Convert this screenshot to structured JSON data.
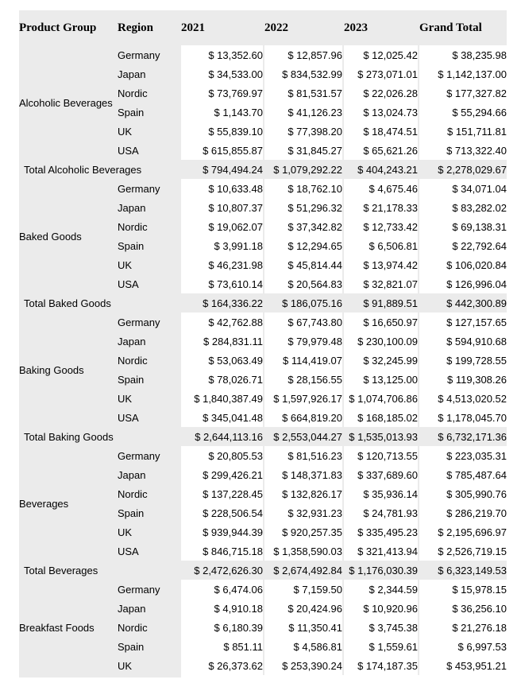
{
  "colors": {
    "band_gray": "#ebebeb",
    "cell_white": "#ffffff",
    "text": "#000000"
  },
  "table": {
    "columns": [
      "Product Group",
      "Region",
      "2021",
      "2022",
      "2023",
      "Grand Total"
    ],
    "groups": [
      {
        "product_group": "Alcoholic Beverages",
        "rows": [
          {
            "region": "Germany",
            "values": [
              "$ 13,352.60",
              "$ 12,857.96",
              "$ 12,025.42",
              "$ 38,235.98"
            ]
          },
          {
            "region": "Japan",
            "values": [
              "$ 34,533.00",
              "$ 834,532.99",
              "$ 273,071.01",
              "$ 1,142,137.00"
            ]
          },
          {
            "region": "Nordic",
            "values": [
              "$ 73,769.97",
              "$ 81,531.57",
              "$ 22,026.28",
              "$ 177,327.82"
            ]
          },
          {
            "region": "Spain",
            "values": [
              "$ 1,143.70",
              "$ 41,126.23",
              "$ 13,024.73",
              "$ 55,294.66"
            ]
          },
          {
            "region": "UK",
            "values": [
              "$ 55,839.10",
              "$ 77,398.20",
              "$ 18,474.51",
              "$ 151,711.81"
            ]
          },
          {
            "region": "USA",
            "values": [
              "$ 615,855.87",
              "$ 31,845.27",
              "$ 65,621.26",
              "$ 713,322.40"
            ]
          }
        ],
        "total": {
          "label": "Total Alcoholic Beverages",
          "values": [
            "$ 794,494.24",
            "$ 1,079,292.22",
            "$ 404,243.21",
            "$ 2,278,029.67"
          ]
        }
      },
      {
        "product_group": "Baked Goods",
        "rows": [
          {
            "region": "Germany",
            "values": [
              "$ 10,633.48",
              "$ 18,762.10",
              "$ 4,675.46",
              "$ 34,071.04"
            ]
          },
          {
            "region": "Japan",
            "values": [
              "$ 10,807.37",
              "$ 51,296.32",
              "$ 21,178.33",
              "$ 83,282.02"
            ]
          },
          {
            "region": "Nordic",
            "values": [
              "$ 19,062.07",
              "$ 37,342.82",
              "$ 12,733.42",
              "$ 69,138.31"
            ]
          },
          {
            "region": "Spain",
            "values": [
              "$ 3,991.18",
              "$ 12,294.65",
              "$ 6,506.81",
              "$ 22,792.64"
            ]
          },
          {
            "region": "UK",
            "values": [
              "$ 46,231.98",
              "$ 45,814.44",
              "$ 13,974.42",
              "$ 106,020.84"
            ]
          },
          {
            "region": "USA",
            "values": [
              "$ 73,610.14",
              "$ 20,564.83",
              "$ 32,821.07",
              "$ 126,996.04"
            ]
          }
        ],
        "total": {
          "label": "Total Baked Goods",
          "values": [
            "$ 164,336.22",
            "$ 186,075.16",
            "$ 91,889.51",
            "$ 442,300.89"
          ]
        }
      },
      {
        "product_group": "Baking Goods",
        "rows": [
          {
            "region": "Germany",
            "values": [
              "$ 42,762.88",
              "$ 67,743.80",
              "$ 16,650.97",
              "$ 127,157.65"
            ]
          },
          {
            "region": "Japan",
            "values": [
              "$ 284,831.11",
              "$ 79,979.48",
              "$ 230,100.09",
              "$ 594,910.68"
            ]
          },
          {
            "region": "Nordic",
            "values": [
              "$ 53,063.49",
              "$ 114,419.07",
              "$ 32,245.99",
              "$ 199,728.55"
            ]
          },
          {
            "region": "Spain",
            "values": [
              "$ 78,026.71",
              "$ 28,156.55",
              "$ 13,125.00",
              "$ 119,308.26"
            ]
          },
          {
            "region": "UK",
            "values": [
              "$ 1,840,387.49",
              "$ 1,597,926.17",
              "$ 1,074,706.86",
              "$ 4,513,020.52"
            ]
          },
          {
            "region": "USA",
            "values": [
              "$ 345,041.48",
              "$ 664,819.20",
              "$ 168,185.02",
              "$ 1,178,045.70"
            ]
          }
        ],
        "total": {
          "label": "Total Baking Goods",
          "values": [
            "$ 2,644,113.16",
            "$ 2,553,044.27",
            "$ 1,535,013.93",
            "$ 6,732,171.36"
          ]
        }
      },
      {
        "product_group": "Beverages",
        "rows": [
          {
            "region": "Germany",
            "values": [
              "$ 20,805.53",
              "$ 81,516.23",
              "$ 120,713.55",
              "$ 223,035.31"
            ]
          },
          {
            "region": "Japan",
            "values": [
              "$ 299,426.21",
              "$ 148,371.83",
              "$ 337,689.60",
              "$ 785,487.64"
            ]
          },
          {
            "region": "Nordic",
            "values": [
              "$ 137,228.45",
              "$ 132,826.17",
              "$ 35,936.14",
              "$ 305,990.76"
            ]
          },
          {
            "region": "Spain",
            "values": [
              "$ 228,506.54",
              "$ 32,931.23",
              "$ 24,781.93",
              "$ 286,219.70"
            ]
          },
          {
            "region": "UK",
            "values": [
              "$ 939,944.39",
              "$ 920,257.35",
              "$ 335,495.23",
              "$ 2,195,696.97"
            ]
          },
          {
            "region": "USA",
            "values": [
              "$ 846,715.18",
              "$ 1,358,590.03",
              "$ 321,413.94",
              "$ 2,526,719.15"
            ]
          }
        ],
        "total": {
          "label": "Total Beverages",
          "values": [
            "$ 2,472,626.30",
            "$ 2,674,492.84",
            "$ 1,176,030.39",
            "$ 6,323,149.53"
          ]
        }
      },
      {
        "product_group": "Breakfast Foods",
        "rows": [
          {
            "region": "Germany",
            "values": [
              "$ 6,474.06",
              "$ 7,159.50",
              "$ 2,344.59",
              "$ 15,978.15"
            ]
          },
          {
            "region": "Japan",
            "values": [
              "$ 4,910.18",
              "$ 20,424.96",
              "$ 10,920.96",
              "$ 36,256.10"
            ]
          },
          {
            "region": "Nordic",
            "values": [
              "$ 6,180.39",
              "$ 11,350.41",
              "$ 3,745.38",
              "$ 21,276.18"
            ]
          },
          {
            "region": "Spain",
            "values": [
              "$ 851.11",
              "$ 4,586.81",
              "$ 1,559.61",
              "$ 6,997.53"
            ]
          },
          {
            "region": "UK",
            "values": [
              "$ 26,373.62",
              "$ 253,390.24",
              "$ 174,187.35",
              "$ 453,951.21"
            ]
          }
        ],
        "total": null
      }
    ]
  }
}
